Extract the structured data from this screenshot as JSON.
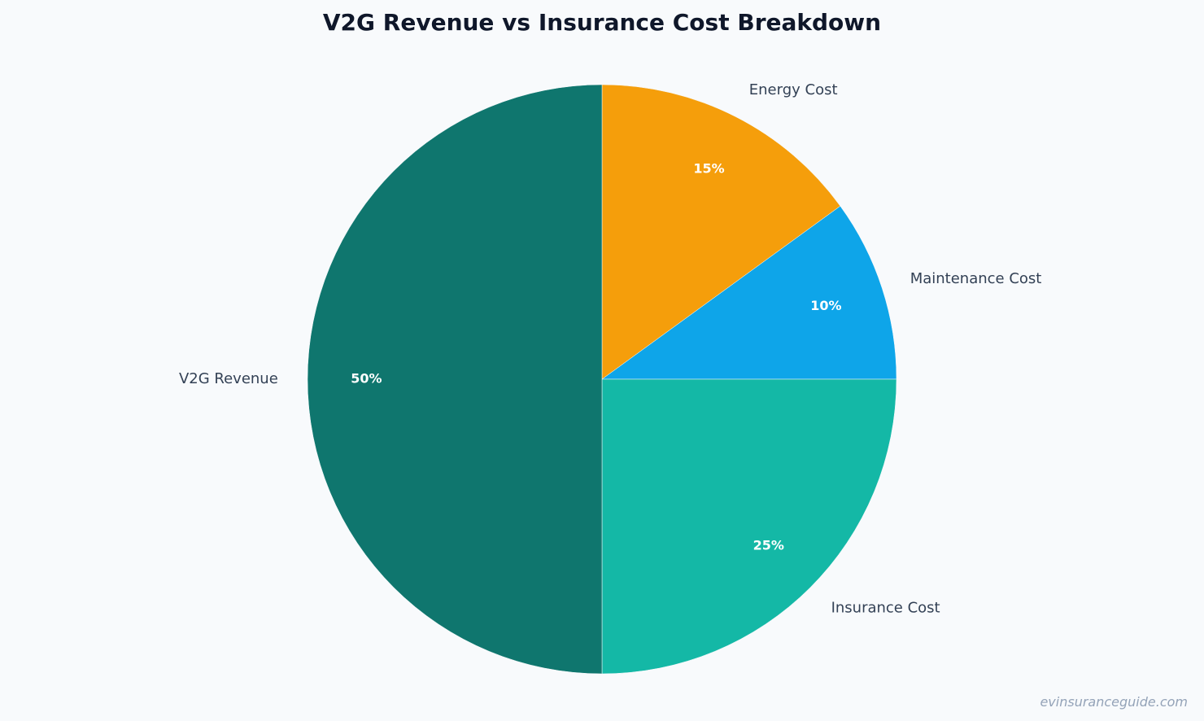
{
  "chart_data": {
    "type": "pie",
    "title": "V2G Revenue vs Insurance Cost Breakdown",
    "slices": [
      {
        "label": "Energy Cost",
        "value": 15,
        "pct_label": "15%",
        "color": "#f59e0b"
      },
      {
        "label": "Maintenance Cost",
        "value": 10,
        "pct_label": "10%",
        "color": "#0ea5e9"
      },
      {
        "label": "Insurance Cost",
        "value": 25,
        "pct_label": "25%",
        "color": "#14b8a6"
      },
      {
        "label": "V2G Revenue",
        "value": 50,
        "pct_label": "50%",
        "color": "#0f766e"
      }
    ],
    "start_angle": "12 o'clock",
    "direction": "clockwise",
    "legend": "none"
  },
  "watermark": "evinsuranceguide.com"
}
